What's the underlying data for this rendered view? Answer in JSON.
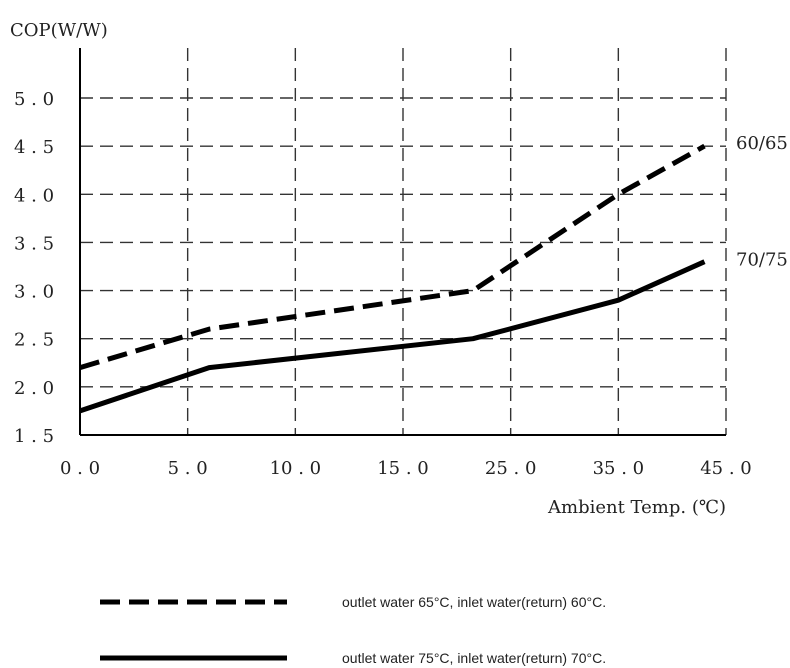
{
  "chart_data": {
    "type": "line",
    "ylabel": "COP(W/W)",
    "xlabel": "Ambient Temp. (℃)",
    "x_tick_labels": [
      "0.0",
      "5.0",
      "10.0",
      "15.0",
      "25.0",
      "35.0",
      "45.0"
    ],
    "y_tick_labels": [
      "1.5",
      "2.0",
      "2.5",
      "3.0",
      "3.5",
      "4.0",
      "4.5",
      "5.0"
    ],
    "ylim": [
      1.5,
      5.0
    ],
    "grid": true,
    "series": [
      {
        "name": "60/65",
        "style": "dashed",
        "color": "#000000",
        "legend_text": "outlet water 65°C,  inlet water(return) 60°C.",
        "points": [
          {
            "tick_pos": 0.0,
            "y": 2.2
          },
          {
            "tick_pos": 1.2,
            "y": 2.6
          },
          {
            "tick_pos": 3.65,
            "y": 3.0
          },
          {
            "tick_pos": 5.0,
            "y": 4.0
          },
          {
            "tick_pos": 5.8,
            "y": 4.5
          }
        ]
      },
      {
        "name": "70/75",
        "style": "solid",
        "color": "#000000",
        "legend_text": "outlet water 75°C,  inlet water(return) 70°C.",
        "points": [
          {
            "tick_pos": 0.0,
            "y": 1.75
          },
          {
            "tick_pos": 1.2,
            "y": 2.2
          },
          {
            "tick_pos": 3.65,
            "y": 2.5
          },
          {
            "tick_pos": 5.0,
            "y": 2.9
          },
          {
            "tick_pos": 5.8,
            "y": 3.3
          }
        ]
      }
    ]
  }
}
